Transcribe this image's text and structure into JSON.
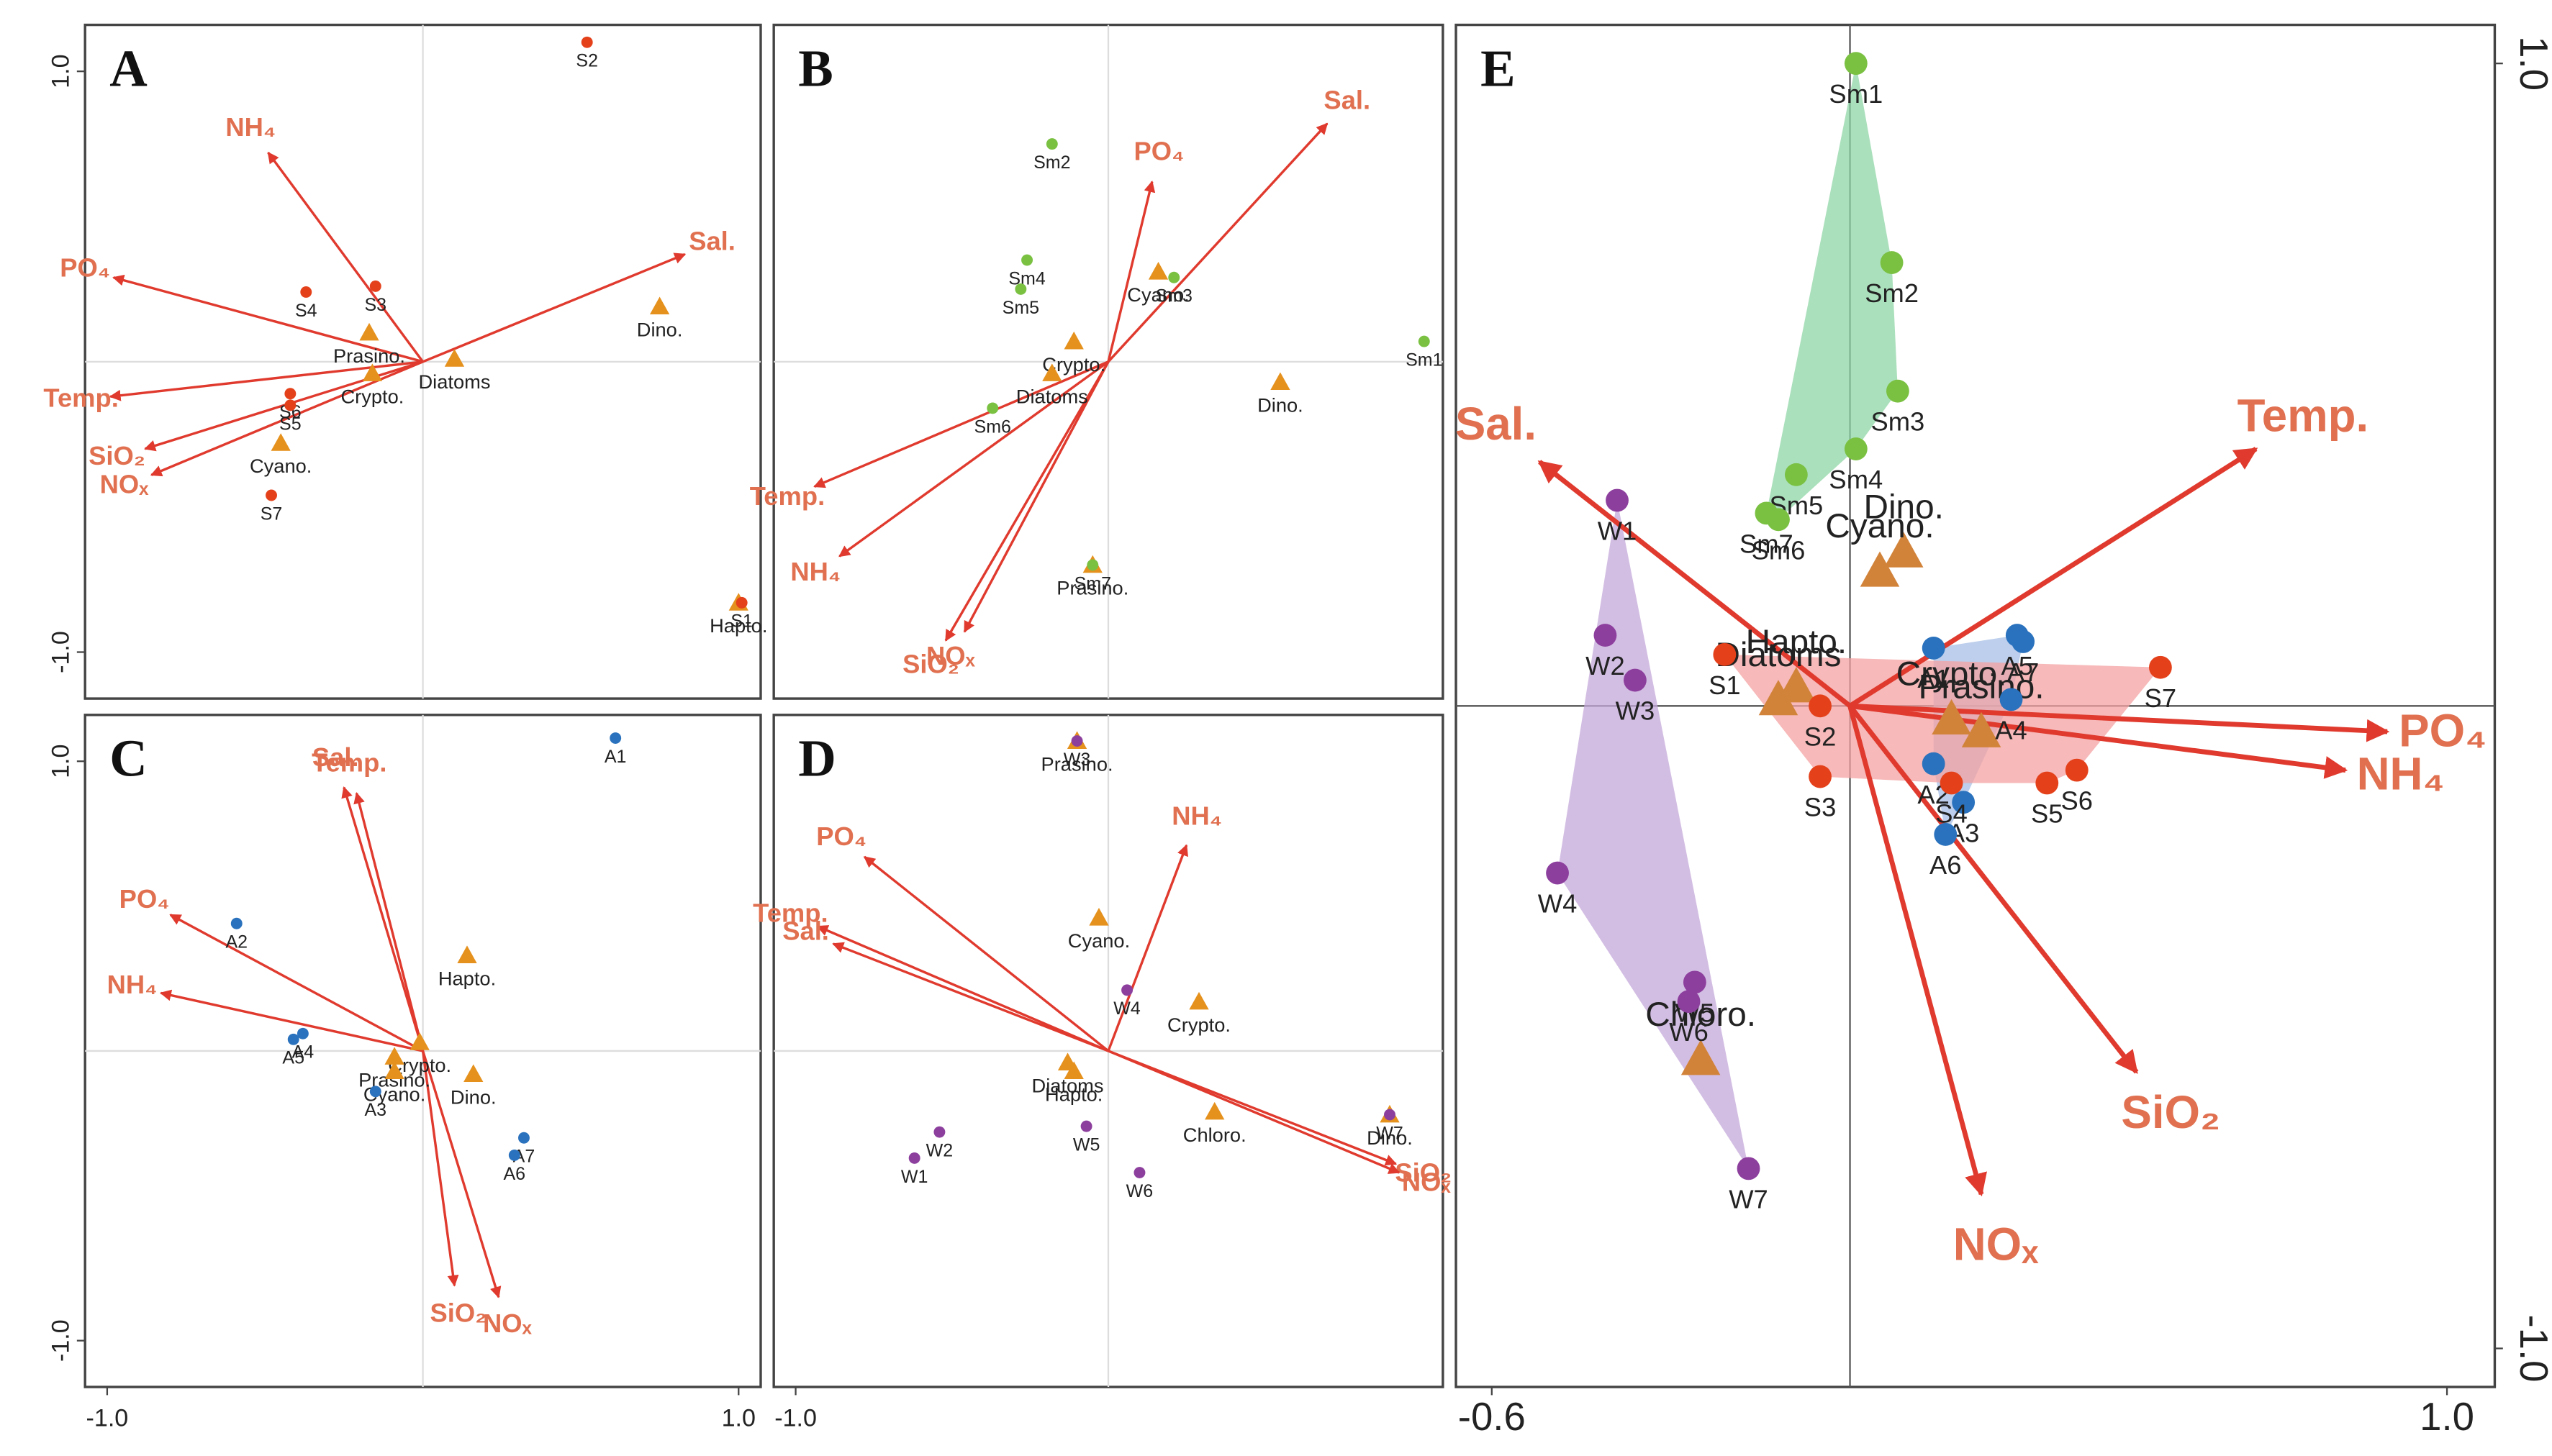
{
  "chart_data": [
    {
      "type": "biplot",
      "panel": "A",
      "xlim": [
        -1.07,
        1.07
      ],
      "ylim": [
        -1.16,
        1.16
      ],
      "xticks": [],
      "yticks": [
        {
          "value": 1,
          "label": "1.0"
        },
        {
          "value": -1,
          "label": "-1.0"
        }
      ],
      "sites": [
        {
          "color": "#e4411b",
          "labels": [
            "S2",
            "S3",
            "S4",
            "S6",
            "S5",
            "S7",
            "S1"
          ],
          "x": [
            0.52,
            -0.15,
            -0.37,
            -0.42,
            -0.42,
            -0.48,
            1.01
          ],
          "y": [
            1.1,
            0.26,
            0.24,
            -0.11,
            -0.15,
            -0.46,
            -0.83
          ]
        }
      ],
      "species": {
        "color": "#e5911d",
        "labels": [
          "Prasino.",
          "Crypto.",
          "Diatoms",
          "Cyano.",
          "Dino.",
          "Hapto."
        ],
        "x": [
          -0.17,
          -0.16,
          0.1,
          -0.45,
          0.75,
          1.0
        ],
        "y": [
          0.1,
          -0.04,
          0.01,
          -0.28,
          0.19,
          -0.83
        ]
      },
      "arrows": {
        "color": "#e03a2e",
        "label_color": "#e07050",
        "labels": [
          "NH₄",
          "PO₄",
          "Sal.",
          "Temp.",
          "SiO₂",
          "NOₓ"
        ],
        "x": [
          -0.49,
          -0.98,
          0.83,
          -0.99,
          -0.88,
          -0.86
        ],
        "y": [
          0.72,
          0.29,
          0.37,
          -0.12,
          -0.3,
          -0.39
        ]
      }
    },
    {
      "type": "biplot",
      "panel": "B",
      "xlim": [
        -1.07,
        1.07
      ],
      "ylim": [
        -1.16,
        1.16
      ],
      "xticks": [],
      "yticks": [],
      "sites": [
        {
          "color": "#7ac142",
          "labels": [
            "Sm2",
            "Sm4",
            "Sm5",
            "Sm3",
            "Sm1",
            "Sm6",
            "Sm7"
          ],
          "x": [
            -0.18,
            -0.26,
            -0.28,
            0.21,
            1.01,
            -0.37,
            -0.05
          ],
          "y": [
            0.75,
            0.35,
            0.25,
            0.29,
            0.07,
            -0.16,
            -0.7
          ]
        }
      ],
      "species": {
        "color": "#e5911d",
        "labels": [
          "Cyano.",
          "Crypto.",
          "Diatoms",
          "Dino.",
          "Prasino."
        ],
        "x": [
          0.16,
          -0.11,
          -0.18,
          0.55,
          -0.05
        ],
        "y": [
          0.31,
          0.07,
          -0.04,
          -0.07,
          -0.7
        ]
      },
      "arrows": {
        "color": "#e03a2e",
        "label_color": "#e07050",
        "labels": [
          "Sal.",
          "PO₄",
          "Temp.",
          "NH₄",
          "SiO₂",
          "NOₓ"
        ],
        "x": [
          0.7,
          0.14,
          -0.94,
          -0.86,
          -0.52,
          -0.46
        ],
        "y": [
          0.82,
          0.62,
          -0.43,
          -0.67,
          -0.96,
          -0.93
        ]
      }
    },
    {
      "type": "biplot",
      "panel": "C",
      "xlim": [
        -1.07,
        1.07
      ],
      "ylim": [
        -1.16,
        1.16
      ],
      "xticks": [
        {
          "value": -1,
          "label": "-1.0"
        },
        {
          "value": 1,
          "label": "1.0"
        }
      ],
      "yticks": [
        {
          "value": 1,
          "label": "1.0"
        },
        {
          "value": -1,
          "label": "-1.0"
        }
      ],
      "sites": [
        {
          "color": "#2a72bd",
          "labels": [
            "A1",
            "A2",
            "A4",
            "A5",
            "A3",
            "A7",
            "A6"
          ],
          "x": [
            0.61,
            -0.59,
            -0.38,
            -0.41,
            -0.15,
            0.32,
            0.29
          ],
          "y": [
            1.08,
            0.44,
            0.06,
            0.04,
            -0.14,
            -0.3,
            -0.36
          ]
        }
      ],
      "species": {
        "color": "#e5911d",
        "labels": [
          "Hapto.",
          "Crypto.",
          "Prasino.",
          "Cyano.",
          "Dino."
        ],
        "x": [
          0.14,
          -0.01,
          -0.09,
          -0.09,
          0.16
        ],
        "y": [
          0.33,
          0.03,
          -0.02,
          -0.07,
          -0.08
        ]
      },
      "arrows": {
        "color": "#e03a2e",
        "label_color": "#e07050",
        "labels": [
          "Sal.",
          "Temp.",
          "PO₄",
          "NH₄",
          "SiO₂",
          "NOₓ"
        ],
        "x": [
          -0.25,
          -0.21,
          -0.8,
          -0.83,
          0.1,
          0.24
        ],
        "y": [
          0.91,
          0.89,
          0.47,
          0.2,
          -0.81,
          -0.85
        ]
      }
    },
    {
      "type": "biplot",
      "panel": "D",
      "xlim": [
        -1.07,
        1.07
      ],
      "ylim": [
        -1.16,
        1.16
      ],
      "xticks": [
        {
          "value": -1,
          "label": "-1.0"
        }
      ],
      "yticks": [],
      "sites": [
        {
          "color": "#8d3f9e",
          "labels": [
            "W3",
            "W4",
            "W2",
            "W1",
            "W5",
            "W6",
            "W7"
          ],
          "x": [
            -0.1,
            0.06,
            -0.54,
            -0.62,
            -0.07,
            0.1,
            0.9
          ],
          "y": [
            1.07,
            0.21,
            -0.28,
            -0.37,
            -0.26,
            -0.42,
            -0.22
          ]
        }
      ],
      "species": {
        "color": "#e5911d",
        "labels": [
          "Prasino.",
          "Cyano.",
          "Crypto.",
          "Diatoms",
          "Hapto.",
          "Chloro.",
          "Dino."
        ],
        "x": [
          -0.1,
          -0.03,
          0.29,
          -0.13,
          -0.11,
          0.34,
          0.9
        ],
        "y": [
          1.07,
          0.46,
          0.17,
          -0.04,
          -0.07,
          -0.21,
          -0.22
        ]
      },
      "arrows": {
        "color": "#e03a2e",
        "label_color": "#e07050",
        "labels": [
          "PO₄",
          "NH₄",
          "Temp.",
          "Sal.",
          "SiO₂",
          "NOₓ"
        ],
        "x": [
          -0.78,
          0.25,
          -0.93,
          -0.88,
          0.92,
          0.93
        ],
        "y": [
          0.67,
          0.71,
          0.43,
          0.37,
          -0.39,
          -0.42
        ]
      }
    },
    {
      "type": "biplot",
      "panel": "E",
      "xlim": [
        -0.66,
        1.08
      ],
      "ylim": [
        -1.06,
        1.06
      ],
      "hull": true,
      "xticks": [
        -0.6,
        {
          "value": 1,
          "label": "1.0"
        }
      ],
      "yticks": [
        {
          "value": 1,
          "label": "1.0"
        },
        {
          "value": -1,
          "label": "-1.0"
        }
      ],
      "sites": [
        {
          "color": "#7ac142",
          "hull_color": "#8fd5a6",
          "labels": [
            "Sm1",
            "Sm2",
            "Sm3",
            "Sm4",
            "Sm5",
            "Sm7",
            "Sm6"
          ],
          "x": [
            0.01,
            0.07,
            0.08,
            0.01,
            -0.09,
            -0.14,
            -0.12
          ],
          "y": [
            1.0,
            0.69,
            0.49,
            0.4,
            0.36,
            0.3,
            0.29
          ]
        },
        {
          "color": "#2a72bd",
          "hull_color": "#a7bfe6",
          "labels": [
            "A5",
            "A7",
            "A1",
            "A4",
            "A2",
            "A3",
            "A6"
          ],
          "x": [
            0.28,
            0.29,
            0.14,
            0.27,
            0.14,
            0.19,
            0.16
          ],
          "y": [
            0.11,
            0.1,
            0.09,
            0.01,
            -0.09,
            -0.15,
            -0.2
          ]
        },
        {
          "color": "#e4411b",
          "hull_color": "#f4a2a2",
          "labels": [
            "S1",
            "S7",
            "S2",
            "S6",
            "S4",
            "S5",
            "S3"
          ],
          "x": [
            -0.21,
            0.52,
            -0.05,
            0.38,
            0.17,
            0.33,
            -0.05
          ],
          "y": [
            0.08,
            0.06,
            0.0,
            -0.1,
            -0.12,
            -0.12,
            -0.11
          ]
        },
        {
          "color": "#8d3f9e",
          "hull_color": "#c4a8da",
          "labels": [
            "W1",
            "W2",
            "W3",
            "W4",
            "W5",
            "W6",
            "W7"
          ],
          "x": [
            -0.39,
            -0.41,
            -0.36,
            -0.49,
            -0.26,
            -0.27,
            -0.17
          ],
          "y": [
            0.32,
            0.11,
            0.04,
            -0.26,
            -0.43,
            -0.46,
            -0.72
          ]
        }
      ],
      "species": {
        "color": "#d2833a",
        "labels": [
          "Dino.",
          "Cyano.",
          "Hapto.",
          "Diatoms",
          "Crypto.",
          "Prasino.",
          "Chloro."
        ],
        "x": [
          0.09,
          0.05,
          -0.09,
          -0.12,
          0.17,
          0.22,
          -0.25
        ],
        "y": [
          0.24,
          0.21,
          0.03,
          0.01,
          -0.02,
          -0.04,
          -0.55
        ]
      },
      "arrows": {
        "color": "#e03a2e",
        "label_color": "#e07050",
        "labels": [
          "Sal.",
          "Temp.",
          "PO₄",
          "NH₄",
          "SiO₂",
          "NOₓ"
        ],
        "x": [
          -0.52,
          0.68,
          0.9,
          0.83,
          0.48,
          0.22
        ],
        "y": [
          0.38,
          0.4,
          -0.04,
          -0.1,
          -0.57,
          -0.76
        ]
      }
    }
  ]
}
